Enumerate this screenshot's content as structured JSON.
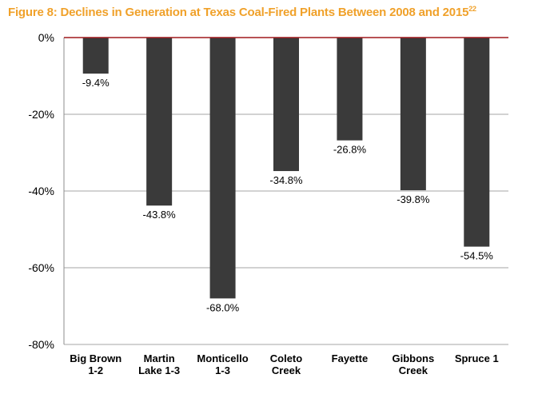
{
  "chart_data": {
    "type": "bar",
    "title": "Figure 8: Declines in Generation at Texas Coal-Fired Plants Between 2008 and 2015",
    "title_footnote": "22",
    "categories": [
      [
        "Big Brown",
        "1-2"
      ],
      [
        "Martin",
        "Lake 1-3"
      ],
      [
        "Monticello",
        "1-3"
      ],
      [
        "Coleto",
        "Creek"
      ],
      [
        "Fayette"
      ],
      [
        "Gibbons",
        "Creek"
      ],
      [
        "Spruce 1"
      ]
    ],
    "values": [
      -9.4,
      -43.8,
      -68.0,
      -34.8,
      -26.8,
      -39.8,
      -54.5
    ],
    "data_labels": [
      "-9.4%",
      "-43.8%",
      "-68.0%",
      "-34.8%",
      "-26.8%",
      "-39.8%",
      "-54.5%"
    ],
    "yticks": [
      0,
      -20,
      -40,
      -60,
      -80
    ],
    "ytick_labels": [
      "0%",
      "-20%",
      "-40%",
      "-60%",
      "-80%"
    ],
    "ylim": [
      -80,
      0
    ],
    "grid": true,
    "colors": {
      "bar": "#3a3a3a",
      "zero_line": "#a0181c",
      "grid": "#a6a6a6",
      "title": "#f0a12a"
    }
  }
}
